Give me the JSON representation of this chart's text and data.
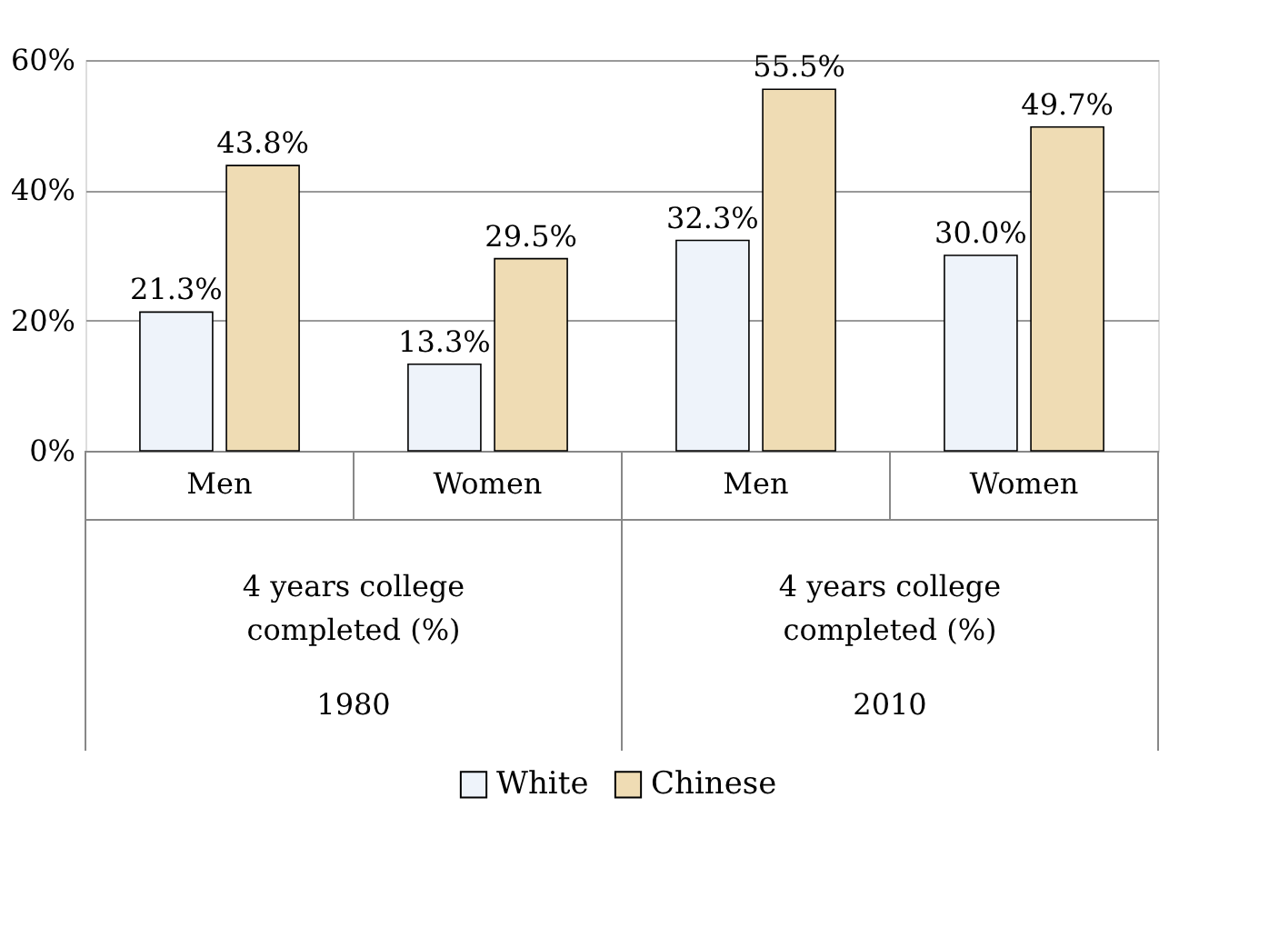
{
  "chart_data": {
    "type": "bar",
    "categories": [
      "Men",
      "Women",
      "Men",
      "Women"
    ],
    "series": [
      {
        "name": "White",
        "color": "#eef3fa",
        "values": [
          21.3,
          13.3,
          32.3,
          30.0
        ]
      },
      {
        "name": "Chinese",
        "color": "#efdcb4",
        "values": [
          43.8,
          29.5,
          55.5,
          49.7
        ]
      }
    ],
    "ylim": [
      0,
      60
    ],
    "yticks": [
      {
        "value": 0,
        "label": "0%"
      },
      {
        "value": 20,
        "label": "20%"
      },
      {
        "value": 40,
        "label": "40%"
      },
      {
        "value": 60,
        "label": "60%"
      }
    ],
    "value_labels": [
      [
        "21.3%",
        "13.3%",
        "32.3%",
        "30.0%"
      ],
      [
        "43.8%",
        "29.5%",
        "55.5%",
        "49.7%"
      ]
    ],
    "annotations": [
      "4 years college completed (%)",
      "4 years college completed (%)",
      "1980",
      "2010"
    ],
    "grid": "y",
    "legend": "bottom"
  }
}
